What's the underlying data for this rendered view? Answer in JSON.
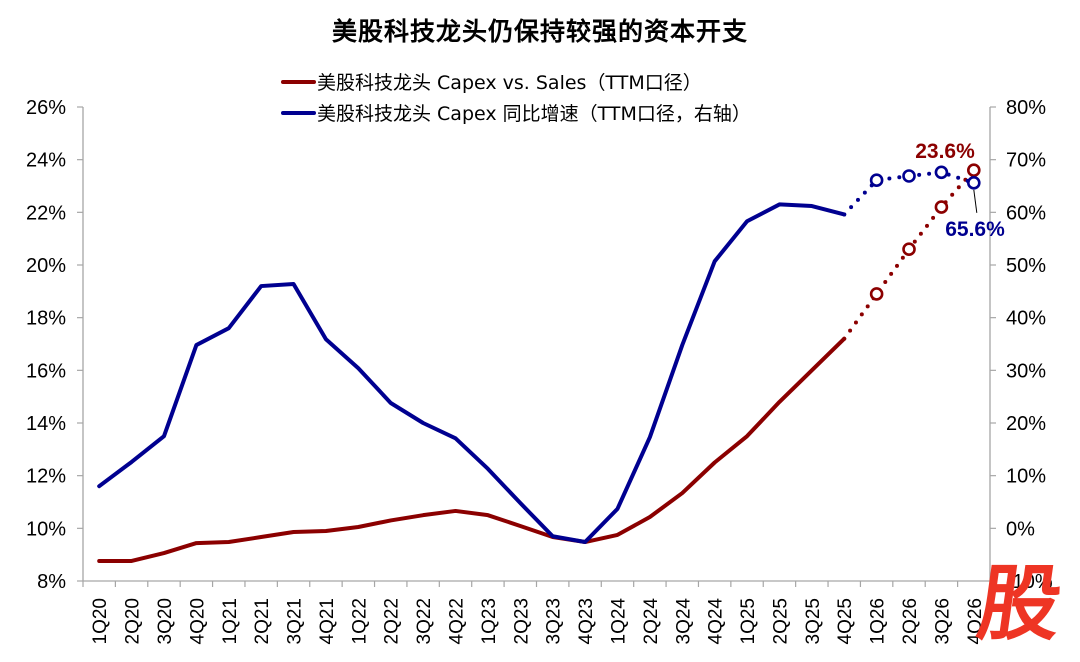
{
  "chart_data": {
    "type": "line",
    "title": "美股科技龙头仍保持较强的资本开支",
    "xlabel": "",
    "ylabel": "",
    "categories": [
      "1Q20",
      "2Q20",
      "3Q20",
      "4Q20",
      "1Q21",
      "2Q21",
      "3Q21",
      "4Q21",
      "1Q22",
      "2Q22",
      "3Q22",
      "4Q22",
      "1Q23",
      "2Q23",
      "3Q23",
      "4Q23",
      "1Q24",
      "2Q24",
      "3Q24",
      "4Q24",
      "1Q25",
      "2Q25",
      "3Q25",
      "4Q25",
      "1Q26",
      "2Q26",
      "3Q26",
      "4Q26"
    ],
    "forecast_start_index": 24,
    "series": [
      {
        "name": "美股科技龙头 Capex vs. Sales（TTM口径）",
        "axis": "left",
        "color": "#8b0000",
        "values": [
          8.76,
          8.76,
          9.06,
          9.44,
          9.48,
          9.67,
          9.86,
          9.9,
          10.05,
          10.3,
          10.5,
          10.66,
          10.5,
          10.09,
          9.67,
          9.48,
          9.75,
          10.43,
          11.34,
          12.5,
          13.5,
          14.8,
          16.0,
          17.2,
          18.9,
          20.6,
          22.2,
          23.6
        ]
      },
      {
        "name": "美股科技龙头 Capex 同比增速（TTM口径，右轴）",
        "axis": "right",
        "color": "#000090",
        "values": [
          8.0,
          12.6,
          17.5,
          34.8,
          38.0,
          46.0,
          46.4,
          35.9,
          30.4,
          23.8,
          20.0,
          17.1,
          11.3,
          4.8,
          -1.5,
          -2.6,
          3.7,
          17.3,
          34.8,
          50.7,
          58.3,
          61.5,
          61.2,
          59.6,
          66.1,
          66.9,
          67.6,
          65.6
        ]
      }
    ],
    "left_axis": {
      "min": 8,
      "max": 26,
      "step": 2,
      "ticks": [
        "8%",
        "10%",
        "12%",
        "14%",
        "16%",
        "18%",
        "20%",
        "22%",
        "24%",
        "26%"
      ]
    },
    "right_axis": {
      "min": -10,
      "max": 80,
      "step": 10,
      "ticks": [
        "-10%",
        "0%",
        "10%",
        "20%",
        "30%",
        "40%",
        "50%",
        "60%",
        "70%",
        "80%"
      ]
    },
    "annotations": [
      {
        "text": "23.6%",
        "series": 0,
        "index": 27,
        "color": "#8b0000"
      },
      {
        "text": "65.6%",
        "series": 1,
        "index": 27,
        "color": "#000090"
      }
    ],
    "grid": false,
    "legend_position": "top"
  },
  "watermark": {
    "glyph": "股",
    "color": "#ee3524"
  }
}
